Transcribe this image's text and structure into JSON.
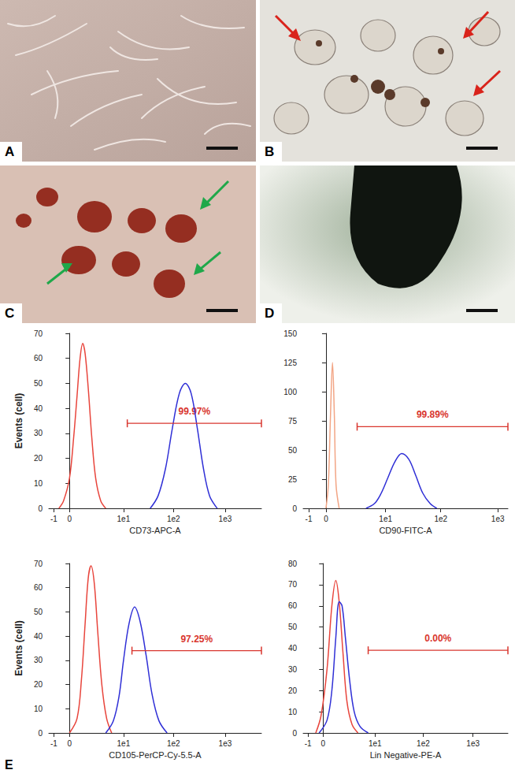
{
  "panels": [
    {
      "label": "A"
    },
    {
      "label": "B"
    },
    {
      "label": "C"
    },
    {
      "label": "D"
    }
  ],
  "chart_label": "E",
  "chart_data": [
    {
      "type": "line",
      "x_label": "CD73-APC-A",
      "y_label": "Events (cell)",
      "log": "x",
      "grid": false,
      "xlim": [
        -1.5,
        5000
      ],
      "xticks": [
        -1,
        0,
        {
          "value": 10,
          "label": "1e1"
        },
        {
          "value": 100,
          "label": "1e2"
        },
        {
          "value": 1000,
          "label": "1e3"
        }
      ],
      "ylim": [
        0,
        70
      ],
      "yticks": [
        0,
        10,
        20,
        30,
        40,
        50,
        60,
        70
      ],
      "series": [
        {
          "color": "#e8453c",
          "x": [
            -0.6,
            -0.3,
            0,
            0.2,
            0.4,
            0.6,
            0.8,
            1.0,
            1.3,
            1.7,
            2.2,
            3,
            4
          ],
          "values": [
            0,
            3,
            12,
            28,
            45,
            60,
            66,
            62,
            48,
            28,
            12,
            3,
            0
          ]
        },
        {
          "color": "#2f2fd6",
          "x": [
            35,
            50,
            70,
            95,
            130,
            170,
            220,
            290,
            380,
            500,
            700
          ],
          "values": [
            0,
            5,
            16,
            32,
            46,
            50,
            46,
            32,
            16,
            5,
            0
          ]
        }
      ],
      "gate": {
        "x": [
          12,
          5000
        ],
        "y": 34,
        "label": "99.97%",
        "color": "#d9362e"
      }
    },
    {
      "type": "line",
      "x_label": "CD90-FITC-A",
      "log": "x",
      "grid": false,
      "xlim": [
        -1.5,
        1500
      ],
      "xticks": [
        -1,
        0,
        {
          "value": 10,
          "label": "1e1"
        },
        {
          "value": 100,
          "label": "1e2"
        },
        {
          "value": 1000,
          "label": "1e3"
        }
      ],
      "ylim": [
        0,
        150
      ],
      "yticks": [
        0,
        25,
        50,
        75,
        100,
        125,
        150
      ],
      "series": [
        {
          "color": "#f2a585",
          "x": [
            0,
            0.1,
            0.2,
            0.3,
            0.4,
            0.5,
            0.7
          ],
          "values": [
            0,
            20,
            80,
            125,
            80,
            20,
            0
          ]
        },
        {
          "color": "#2f2fd6",
          "x": [
            4,
            6,
            8,
            11,
            15,
            20,
            27,
            36,
            48,
            65,
            85
          ],
          "values": [
            0,
            4,
            12,
            26,
            40,
            47,
            42,
            28,
            13,
            4,
            0
          ]
        }
      ],
      "gate": {
        "x": [
          2.5,
          1500
        ],
        "y": 70,
        "label": "99.89%",
        "color": "#d9362e"
      }
    },
    {
      "type": "line",
      "x_label": "CD105-PerCP-Cy-5.5-A",
      "y_label": "Events (cell)",
      "log": "x",
      "grid": false,
      "xlim": [
        -1.5,
        5000
      ],
      "xticks": [
        -1,
        0,
        {
          "value": 10,
          "label": "1e1"
        },
        {
          "value": 100,
          "label": "1e2"
        },
        {
          "value": 1000,
          "label": "1e3"
        }
      ],
      "ylim": [
        0,
        70
      ],
      "yticks": [
        0,
        10,
        20,
        30,
        40,
        50,
        60,
        70
      ],
      "series": [
        {
          "color": "#e8453c",
          "x": [
            0,
            0.4,
            0.7,
            1.0,
            1.3,
            1.6,
            2.0,
            2.5,
            3.2,
            4.2,
            5.5
          ],
          "values": [
            0,
            6,
            22,
            45,
            64,
            69,
            62,
            42,
            20,
            6,
            0
          ]
        },
        {
          "color": "#2f2fd6",
          "x": [
            4,
            6,
            8,
            10,
            13,
            17,
            22,
            29,
            38,
            52,
            75
          ],
          "values": [
            0,
            5,
            15,
            30,
            45,
            52,
            46,
            32,
            16,
            5,
            0
          ]
        }
      ],
      "gate": {
        "x": [
          15,
          5000
        ],
        "y": 34,
        "label": "97.25%",
        "color": "#d9362e"
      }
    },
    {
      "type": "line",
      "x_label": "Lin Negative-PE-A",
      "log": "x",
      "grid": false,
      "xlim": [
        -1.5,
        5000
      ],
      "xticks": [
        -1,
        0,
        {
          "value": 10,
          "label": "1e1"
        },
        {
          "value": 100,
          "label": "1e2"
        },
        {
          "value": 1000,
          "label": "1e3"
        }
      ],
      "ylim": [
        0,
        80
      ],
      "yticks": [
        0,
        10,
        20,
        30,
        40,
        50,
        60,
        70,
        80
      ],
      "series": [
        {
          "color": "#e8453c",
          "x": [
            -0.4,
            -0.1,
            0.2,
            0.5,
            0.8,
            1.1,
            1.5,
            2,
            2.8,
            4
          ],
          "values": [
            0,
            8,
            30,
            60,
            72,
            62,
            38,
            15,
            4,
            0
          ]
        },
        {
          "color": "#2f2fd6",
          "x": [
            -0.2,
            0.2,
            0.5,
            0.8,
            1.1,
            1.4,
            1.8,
            2.4,
            3.2,
            4.5,
            7
          ],
          "values": [
            0,
            6,
            20,
            45,
            62,
            60,
            45,
            25,
            10,
            3,
            0
          ]
        }
      ],
      "gate": {
        "x": [
          7,
          5000
        ],
        "y": 39,
        "label": "0.00%",
        "color": "#d9362e"
      }
    }
  ]
}
